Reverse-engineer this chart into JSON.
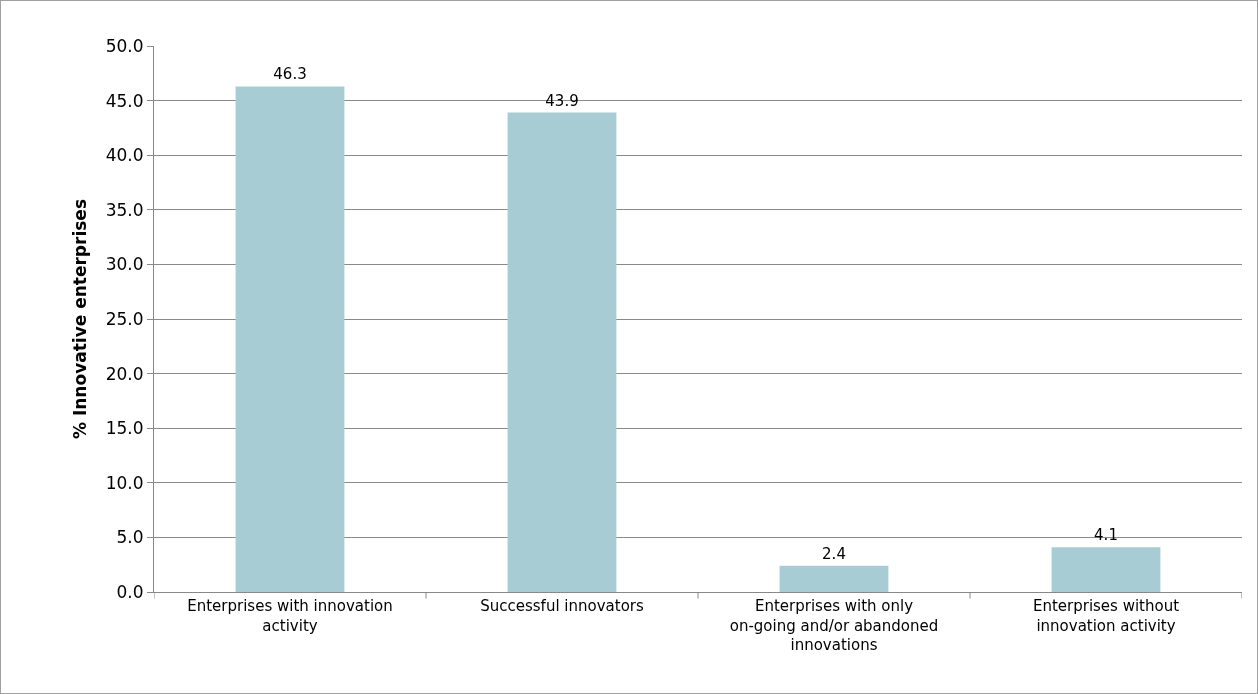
{
  "chart_data": {
    "type": "bar",
    "ylabel": "% Innovative enterprises",
    "categories": [
      "Enterprises with innovation activity",
      "Successful innovators",
      "Enterprises with only on-going and/or abandoned innovations",
      "Enterprises without innovation activity"
    ],
    "values": [
      46.3,
      43.9,
      2.4,
      4.1
    ],
    "color": "#a8ccd4",
    "ylim": [
      0,
      50
    ],
    "yticks": [
      {
        "value": 0,
        "label": "0.0"
      },
      {
        "value": 5,
        "label": "5.0"
      },
      {
        "value": 10,
        "label": "10.0"
      },
      {
        "value": 15,
        "label": "15.0"
      },
      {
        "value": 20,
        "label": "20.0"
      },
      {
        "value": 25,
        "label": "25.0"
      },
      {
        "value": 30,
        "label": "30.0"
      },
      {
        "value": 35,
        "label": "35.0"
      },
      {
        "value": 40,
        "label": "40.0"
      },
      {
        "value": 45,
        "label": "45.0"
      },
      {
        "value": 50,
        "label": "50.0"
      }
    ],
    "grid": true,
    "data_labels": true
  }
}
